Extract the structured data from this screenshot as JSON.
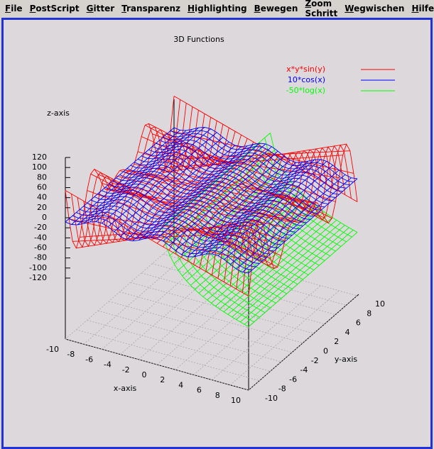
{
  "menu": [
    "File",
    "PostScript",
    "Gitter",
    "Transparenz",
    "Highlighting",
    "Bewegen",
    "Zoom Schritt",
    "Wegwischen",
    "Hilfe"
  ],
  "plot": {
    "title": "3D Functions",
    "z_label": "z-axis",
    "x_label": "x-axis",
    "y_label": "y-axis",
    "legend": [
      {
        "label": "x*y*sin(y)",
        "color": "#ff0000"
      },
      {
        "label": "10*cos(x)",
        "color": "#0000ff"
      },
      {
        "label": "-50*log(x)",
        "color": "#00ff00"
      }
    ],
    "z_ticks": [
      120,
      100,
      80,
      60,
      40,
      20,
      0,
      -20,
      -40,
      -60,
      -80,
      -100,
      -120
    ],
    "x_ticks": [
      -10,
      -8,
      -6,
      -4,
      -2,
      0,
      2,
      4,
      6,
      8,
      10
    ],
    "y_ticks": [
      -10,
      -8,
      -6,
      -4,
      -2,
      0,
      2,
      4,
      6,
      8,
      10
    ]
  }
}
